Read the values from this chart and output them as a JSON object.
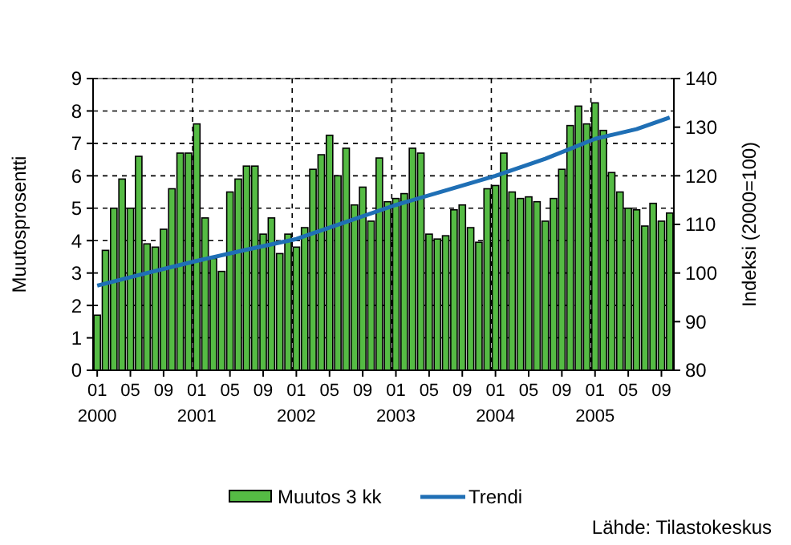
{
  "chart_data": {
    "type": "bar",
    "xlabel": null,
    "ylabel": "Muutosprosentti",
    "y2label": "Indeksi (2000=100)",
    "categories": [
      "01\n2000",
      null,
      null,
      null,
      "05",
      null,
      null,
      null,
      "09",
      null,
      null,
      null,
      "01\n2001",
      null,
      null,
      null,
      "05",
      null,
      null,
      null,
      "09",
      null,
      null,
      null,
      "01\n2002",
      null,
      null,
      null,
      "05",
      null,
      null,
      null,
      "09",
      null,
      null,
      null,
      "01\n2003",
      null,
      null,
      null,
      "05",
      null,
      null,
      null,
      "09",
      null,
      null,
      null,
      "01\n2004",
      null,
      null,
      null,
      "05",
      null,
      null,
      null,
      "09",
      null,
      null,
      null,
      "01\n2005",
      null,
      null,
      null,
      "05",
      null,
      null,
      null,
      "09",
      null
    ],
    "series": [
      {
        "name": "Muutos 3 kk",
        "color": "#55bb44",
        "values": [
          1.7,
          3.7,
          5.0,
          5.9,
          5.0,
          6.6,
          3.9,
          3.8,
          4.35,
          5.6,
          6.7,
          6.7,
          7.6,
          4.7,
          3.45,
          3.05,
          5.5,
          5.9,
          6.3,
          6.3,
          4.2,
          4.7,
          3.6,
          4.2,
          3.8,
          4.4,
          6.2,
          6.65,
          7.25,
          6.0,
          6.85,
          5.1,
          5.65,
          4.6,
          6.55,
          5.2,
          5.3,
          5.45,
          6.85,
          6.7,
          4.2,
          4.05,
          4.15,
          4.95,
          5.1,
          4.4,
          3.95,
          5.6,
          5.7,
          6.7,
          5.5,
          5.3,
          5.35,
          5.2,
          4.6,
          5.3,
          6.2,
          7.55,
          8.15,
          7.6,
          8.25,
          7.4,
          6.1,
          5.5,
          5.0,
          4.95,
          4.45,
          5.15,
          4.6,
          4.85
        ]
      },
      {
        "name": "Trendi",
        "type": "line",
        "axis": "y2",
        "color": "#1f6fb5",
        "values": [
          97.4,
          null,
          null,
          null,
          null,
          null,
          100,
          null,
          null,
          null,
          null,
          null,
          102.5,
          null,
          null,
          null,
          null,
          null,
          104.8,
          null,
          null,
          null,
          null,
          null,
          107,
          null,
          null,
          null,
          null,
          null,
          110.5,
          null,
          null,
          null,
          null,
          null,
          114,
          null,
          null,
          null,
          null,
          null,
          117,
          null,
          null,
          null,
          null,
          null,
          120,
          null,
          null,
          null,
          null,
          null,
          123.5,
          null,
          null,
          null,
          null,
          null,
          127.6,
          null,
          null,
          null,
          null,
          129.6,
          null,
          null,
          null,
          132
        ]
      }
    ],
    "ylim": [
      0,
      9
    ],
    "yticks": [
      0,
      1,
      2,
      3,
      4,
      5,
      6,
      7,
      8,
      9
    ],
    "y2lim": [
      80,
      140
    ],
    "y2ticks": [
      80,
      90,
      100,
      110,
      120,
      130,
      140
    ],
    "grid": true,
    "legend": "bottom",
    "annotations": [
      "Lähde: Tilastokeskus"
    ]
  }
}
